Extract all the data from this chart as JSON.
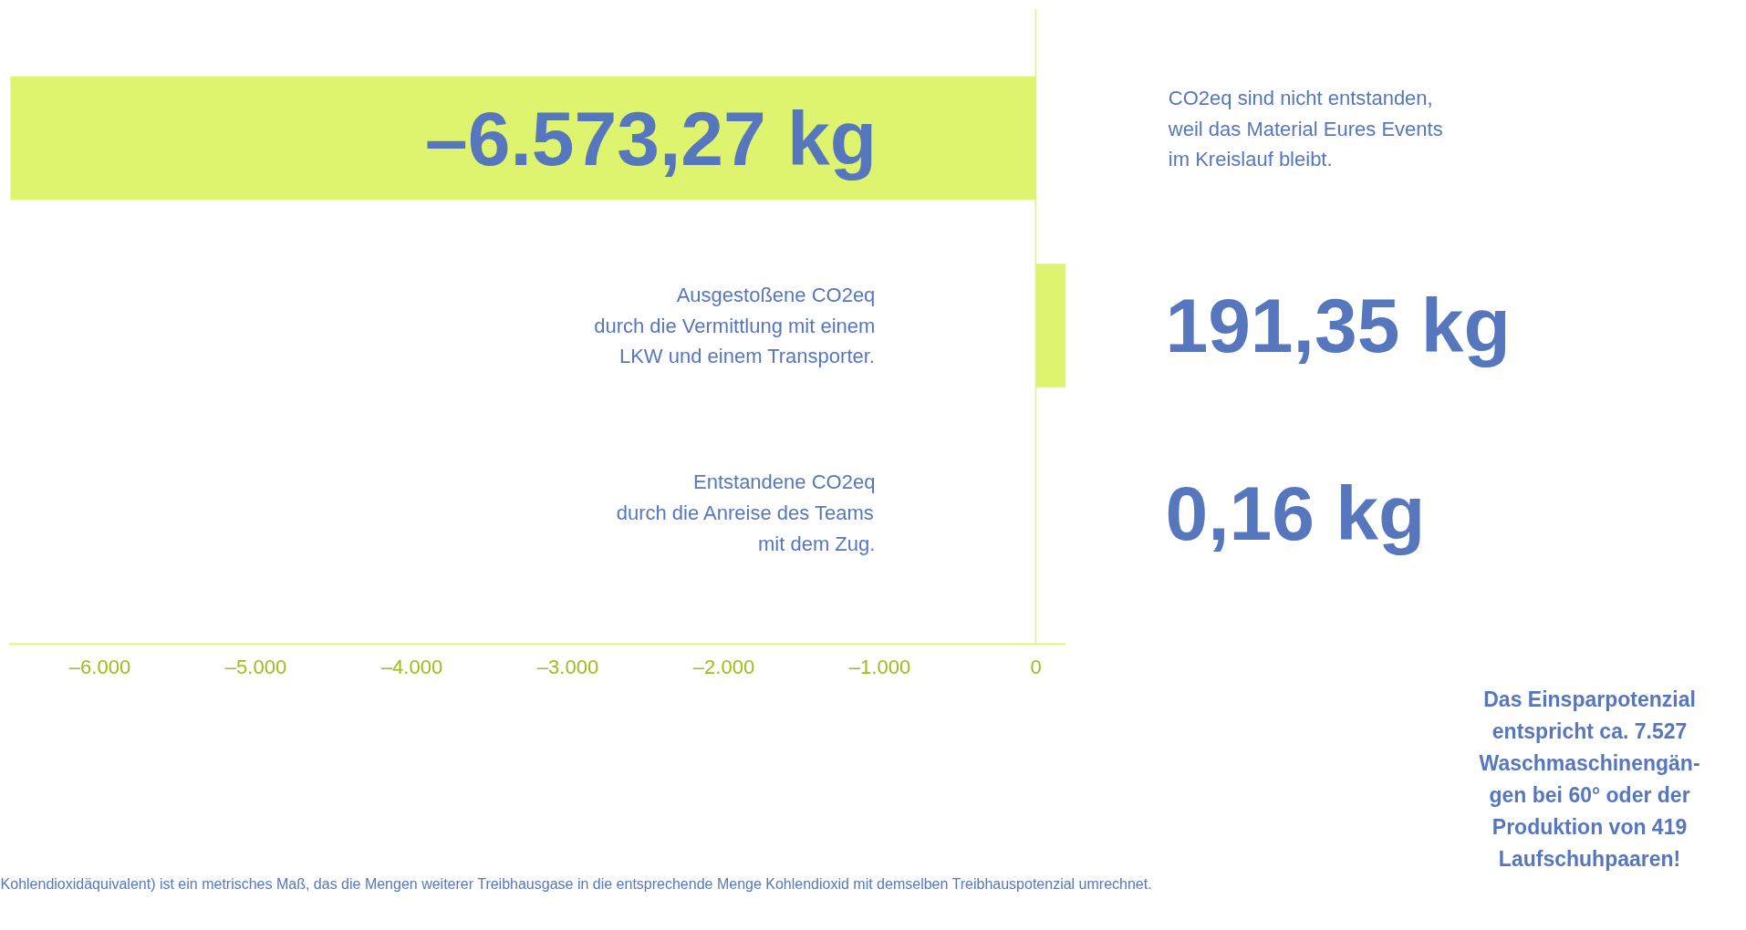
{
  "chart_data": {
    "type": "bar",
    "orientation": "horizontal",
    "categories": [
      null,
      null,
      null
    ],
    "values": [
      -6573.27,
      191.35,
      0.16
    ],
    "color": "#dff46e",
    "value_labels": [
      "–6.573,27 kg",
      "191,35 kg",
      "0,16 kg"
    ],
    "xlim": [
      -6580,
      193
    ],
    "xticks": [
      {
        "value": -6000,
        "label": "–6.000"
      },
      {
        "value": -5000,
        "label": "–5.000"
      },
      {
        "value": -4000,
        "label": "–4.000"
      },
      {
        "value": -3000,
        "label": "–3.000"
      },
      {
        "value": -2000,
        "label": "–2.000"
      },
      {
        "value": -1000,
        "label": "–1.000"
      },
      0
    ],
    "ref_lines": [
      {
        "axis": "x",
        "value": 0,
        "label": null,
        "color": "#dff46e"
      }
    ],
    "grid": false,
    "annotations": [
      "CO2eq sind nicht entstanden,\nweil das Material Eures Events\nim Kreislauf bleibt.",
      "Ausgestoßene CO2eq\ndurch die Vermittlung mit einem\nLKW und einem Transporter.",
      "Entstandene CO2eq\ndurch die Anreise des Teams\nmit dem Zug.",
      "Das Einsparpotenzial\nentspricht ca. 7.527\nWaschmaschinengän-\ngen bei 60° oder der\nProduktion von 419\nLaufschuhpaaren!",
      "Kohlendioxidäquivalent) ist ein metrisches Maß, das die Mengen weiterer Treibhausgase in die entsprechende Menge Kohlendioxid mit demselben Treibhauspotenzial umrechnet."
    ]
  }
}
